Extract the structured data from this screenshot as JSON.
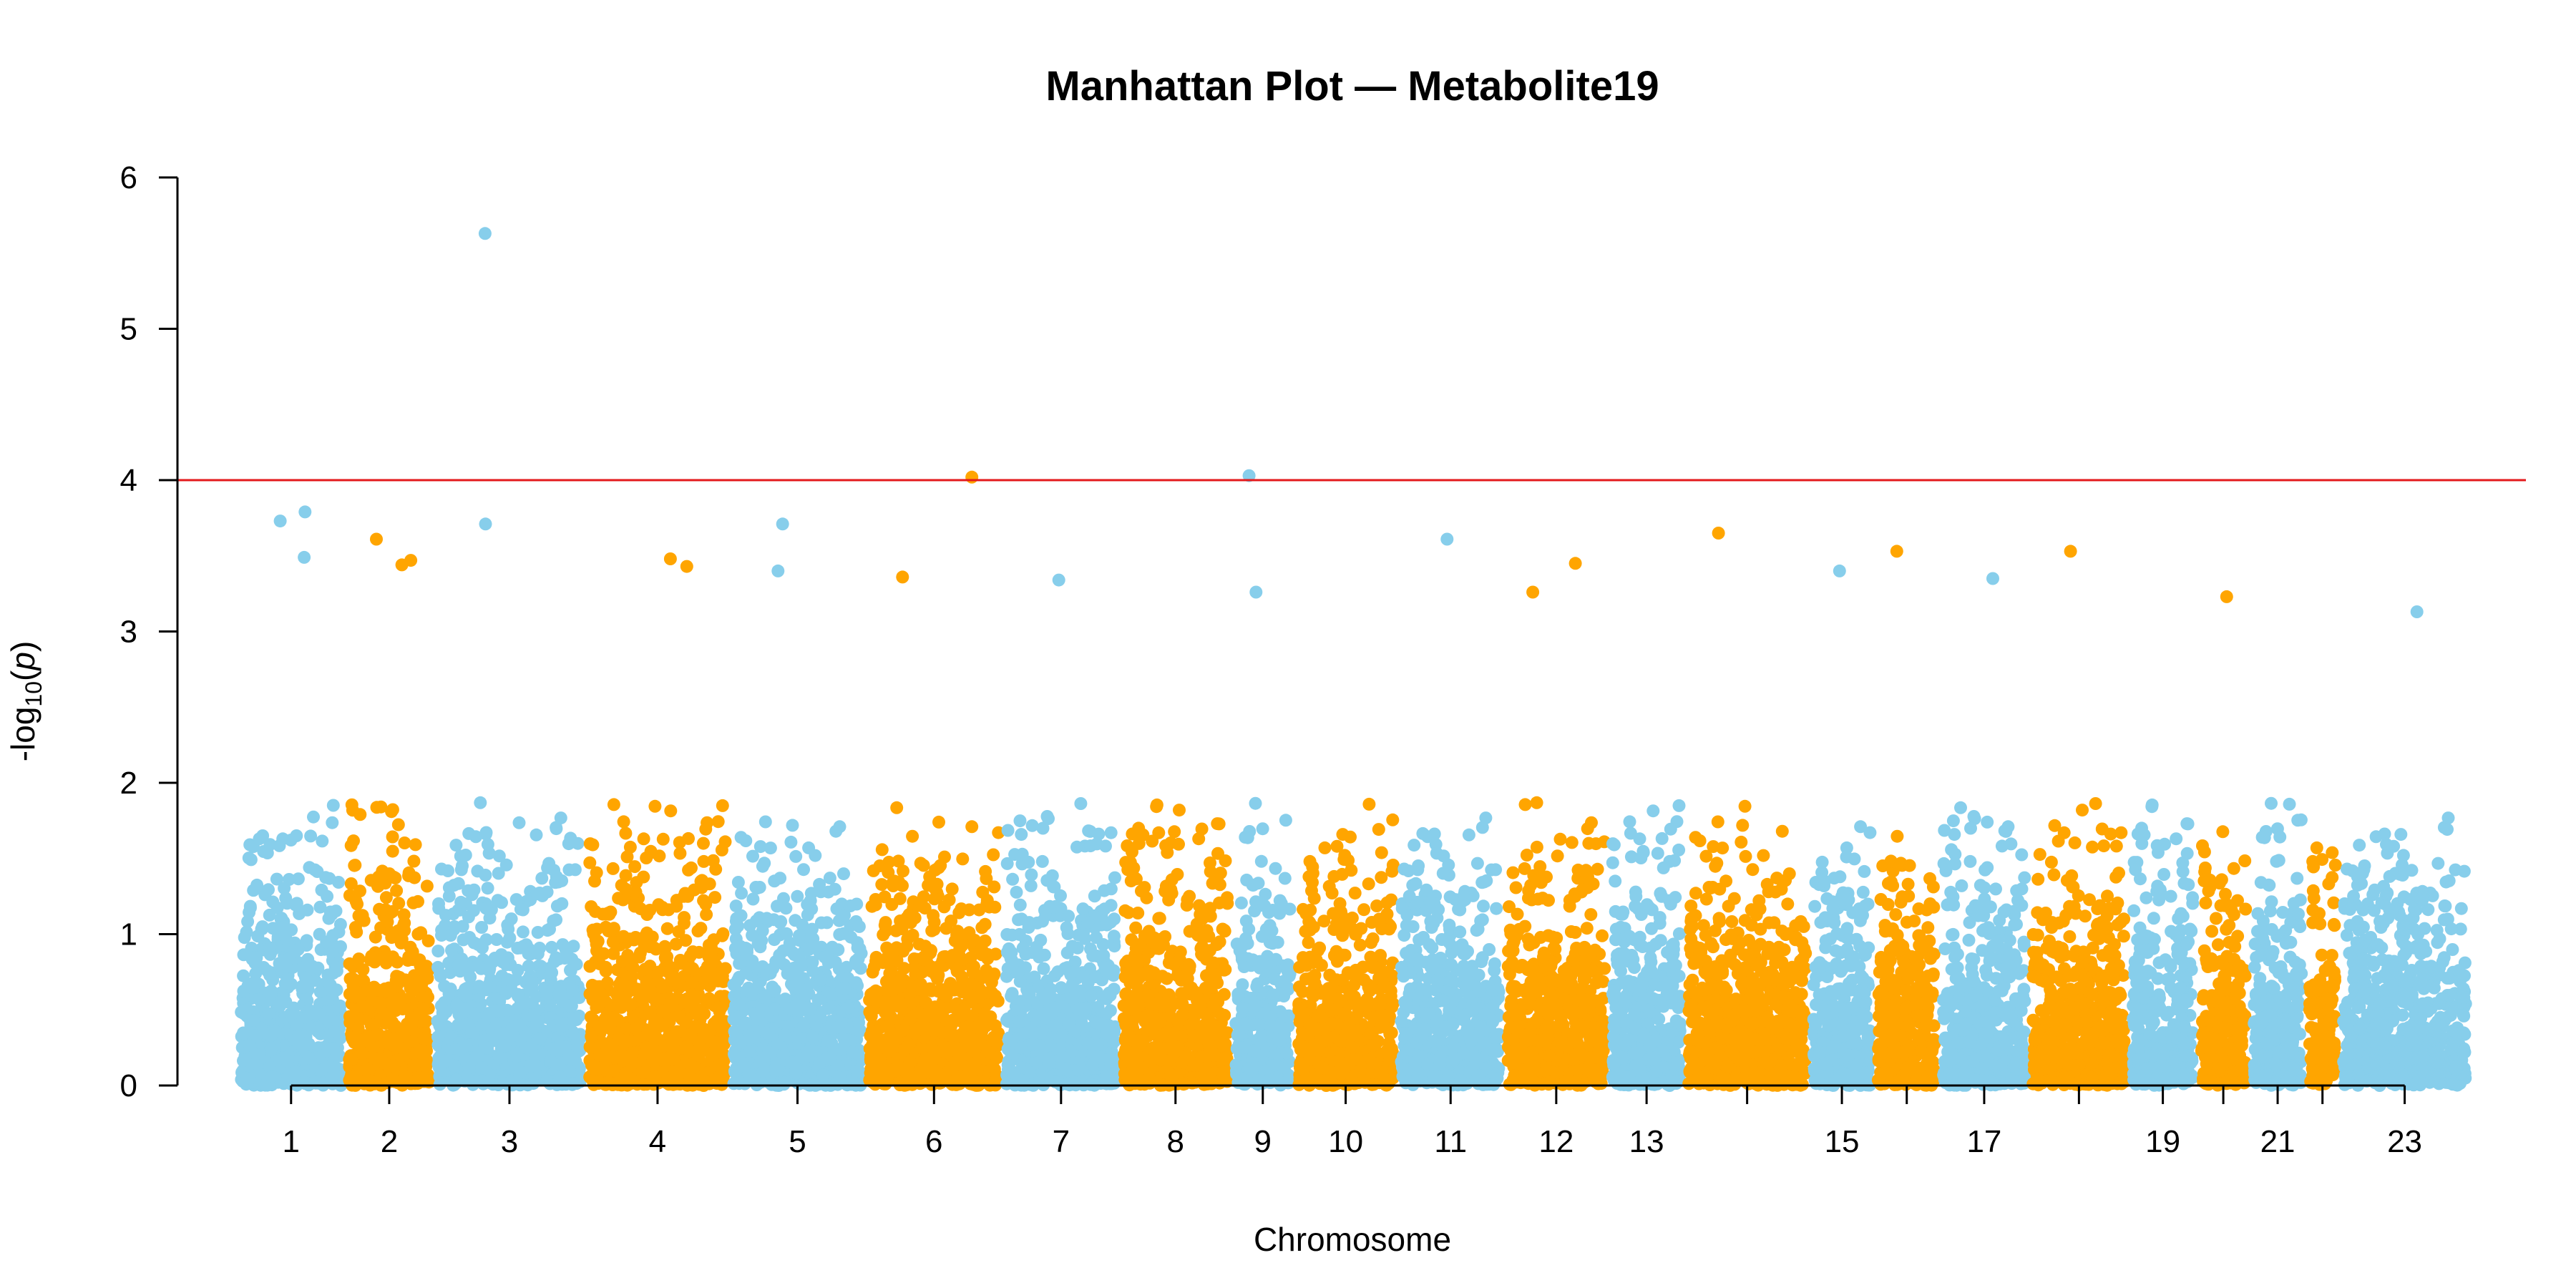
{
  "chart_data": {
    "type": "scatter",
    "subtype": "manhattan",
    "title": "Manhattan Plot — Metabolite19",
    "xlabel": "Chromosome",
    "ylabel": {
      "prefix": "-log",
      "subscript": "10",
      "open": "(",
      "italic": "p",
      "close": ")"
    },
    "ylim": [
      0,
      6
    ],
    "yticks": [
      0,
      1,
      2,
      3,
      4,
      5,
      6
    ],
    "threshold": 4,
    "grid": false,
    "legend": "none",
    "colors": {
      "odd": "#87CEEB",
      "even": "#FFA500",
      "threshold": "#E31A1C",
      "axis": "#000000"
    },
    "chromosomes": [
      {
        "chr": "1",
        "label": "1"
      },
      {
        "chr": "2",
        "label": "2"
      },
      {
        "chr": "3",
        "label": "3"
      },
      {
        "chr": "4",
        "label": "4"
      },
      {
        "chr": "5",
        "label": "5"
      },
      {
        "chr": "6",
        "label": "6"
      },
      {
        "chr": "7",
        "label": "7"
      },
      {
        "chr": "8",
        "label": "8"
      },
      {
        "chr": "9",
        "label": "9"
      },
      {
        "chr": "10",
        "label": "10"
      },
      {
        "chr": "11",
        "label": "11"
      },
      {
        "chr": "12",
        "label": "12"
      },
      {
        "chr": "13",
        "label": "13"
      },
      {
        "chr": "14",
        "label": ""
      },
      {
        "chr": "15",
        "label": "15"
      },
      {
        "chr": "16",
        "label": ""
      },
      {
        "chr": "17",
        "label": "17"
      },
      {
        "chr": "18",
        "label": ""
      },
      {
        "chr": "19",
        "label": "19"
      },
      {
        "chr": "20",
        "label": ""
      },
      {
        "chr": "21",
        "label": "21"
      },
      {
        "chr": "22",
        "label": ""
      },
      {
        "chr": "23",
        "label": "23"
      }
    ],
    "top_hits": [
      {
        "chr": "3",
        "y": 5.63
      },
      {
        "chr": "6",
        "y": 4.02
      },
      {
        "chr": "9",
        "y": 4.03
      },
      {
        "chr": "1",
        "y": 3.79
      },
      {
        "chr": "1",
        "y": 3.73
      },
      {
        "chr": "3",
        "y": 3.71
      },
      {
        "chr": "5",
        "y": 3.71
      },
      {
        "chr": "14",
        "y": 3.65
      },
      {
        "chr": "2",
        "y": 3.61
      },
      {
        "chr": "11",
        "y": 3.61
      },
      {
        "chr": "16",
        "y": 3.53
      },
      {
        "chr": "18",
        "y": 3.53
      },
      {
        "chr": "1",
        "y": 3.49
      },
      {
        "chr": "4",
        "y": 3.48
      },
      {
        "chr": "2",
        "y": 3.47
      },
      {
        "chr": "12",
        "y": 3.45
      },
      {
        "chr": "4",
        "y": 3.43
      },
      {
        "chr": "2",
        "y": 3.44
      },
      {
        "chr": "5",
        "y": 3.4
      },
      {
        "chr": "17",
        "y": 3.35
      },
      {
        "chr": "7",
        "y": 3.34
      },
      {
        "chr": "6",
        "y": 3.36
      },
      {
        "chr": "15",
        "y": 3.4
      },
      {
        "chr": "9",
        "y": 3.26
      },
      {
        "chr": "20",
        "y": 3.23
      },
      {
        "chr": "12",
        "y": 3.26
      },
      {
        "chr": "23",
        "y": 3.13
      }
    ]
  }
}
